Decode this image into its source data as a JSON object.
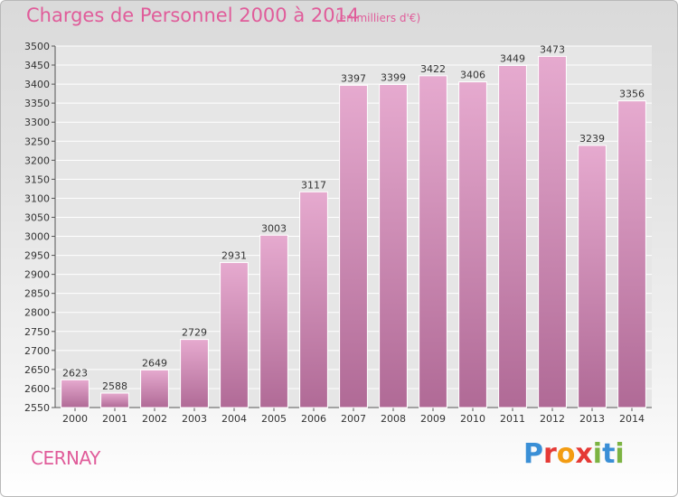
{
  "title": "Charges de Personnel 2000 à 2014",
  "subtitle": "(en milliers d'€)",
  "location": "CERNAY",
  "brand": {
    "letters": [
      "P",
      "r",
      "o",
      "x",
      "i",
      "t",
      "i"
    ],
    "colors": [
      "#3a8fd6",
      "#e53935",
      "#f39c12",
      "#e53935",
      "#7cb342",
      "#3a8fd6",
      "#7cb342"
    ]
  },
  "colors": {
    "bar_top": "#e6aacf",
    "bar_bottom": "#b06a96",
    "title": "#e05c9a"
  },
  "chart_data": {
    "type": "bar",
    "categories": [
      "2000",
      "2001",
      "2002",
      "2003",
      "2004",
      "2005",
      "2006",
      "2007",
      "2008",
      "2009",
      "2010",
      "2011",
      "2012",
      "2013",
      "2014"
    ],
    "values": [
      2623,
      2588,
      2649,
      2729,
      2931,
      3003,
      3117,
      3397,
      3399,
      3422,
      3406,
      3449,
      3473,
      3239,
      3356
    ],
    "ylim": [
      2550,
      3500
    ],
    "yticks": [
      2550,
      2600,
      2650,
      2700,
      2750,
      2800,
      2850,
      2900,
      2950,
      3000,
      3050,
      3100,
      3150,
      3200,
      3250,
      3300,
      3350,
      3400,
      3450,
      3500
    ],
    "grid": true,
    "xlabel": "",
    "ylabel": ""
  }
}
